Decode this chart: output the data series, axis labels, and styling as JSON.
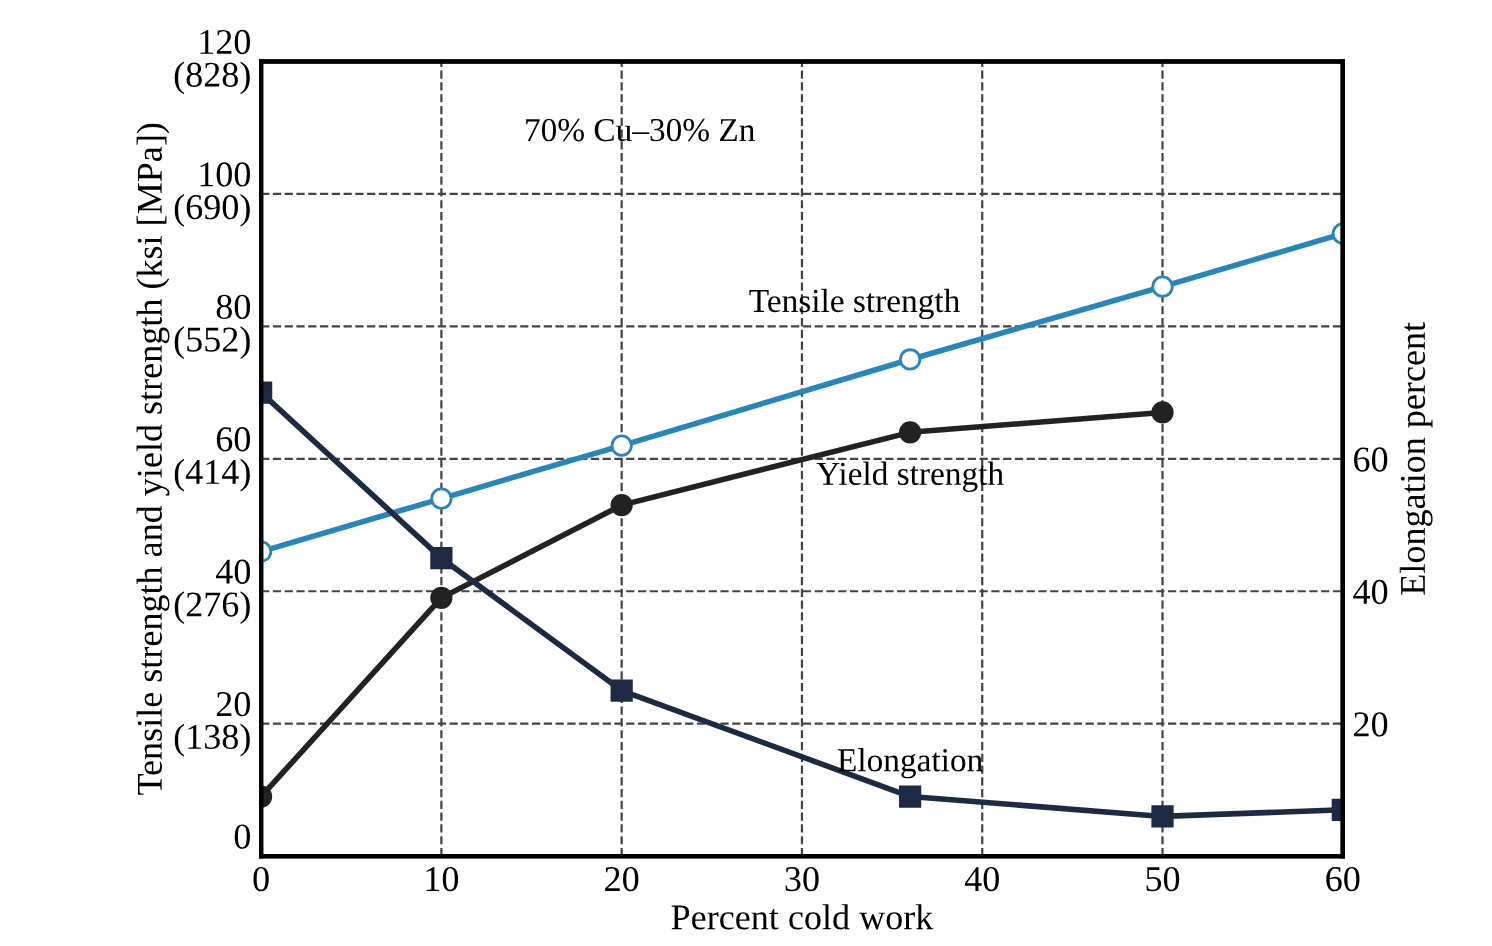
{
  "chart_data": {
    "type": "line",
    "xlabel": "Percent cold work",
    "ylabel": "Tensile strength and yield strength (ksi [MPa])",
    "y2label": "Elongation percent",
    "annotations": [
      "70% Cu–30% Zn"
    ],
    "xlim": [
      0,
      60
    ],
    "xticks": [
      0,
      10,
      20,
      30,
      40,
      50,
      60
    ],
    "ylim": [
      0,
      120
    ],
    "yticks": [
      0,
      20,
      40,
      60,
      80,
      100,
      120
    ],
    "y3lim": [
      0,
      828
    ],
    "y3ticks": [
      {
        "value": 138,
        "label": "(138)"
      },
      {
        "value": 276,
        "label": "(276)"
      },
      {
        "value": 414,
        "label": "(414)"
      },
      {
        "value": 552,
        "label": "(552)"
      },
      {
        "value": 690,
        "label": "(690)"
      },
      {
        "value": 828,
        "label": "(828)"
      }
    ],
    "y2lim": [
      0,
      120
    ],
    "y2ticks": [
      20,
      40,
      60
    ],
    "grid": true,
    "legend": false,
    "line_style": "solid",
    "series": [
      {
        "name": "Tensile strength",
        "color": "#2a86b8",
        "marker": "circle",
        "x": [
          0,
          10,
          20,
          36,
          50,
          60
        ],
        "values": [
          46,
          54,
          62,
          75,
          86,
          94
        ]
      },
      {
        "name": "Yield strength",
        "color": "#222222",
        "marker": "circle",
        "x": [
          0,
          10,
          20,
          36,
          50
        ],
        "values": [
          9,
          39,
          53,
          64,
          67
        ]
      },
      {
        "name": "Elongation",
        "color": "#1c2a44",
        "marker": "square",
        "axis": "y2",
        "x": [
          0,
          10,
          20,
          36,
          50,
          60
        ],
        "values": [
          70,
          45,
          25,
          9,
          6,
          7
        ]
      }
    ]
  }
}
